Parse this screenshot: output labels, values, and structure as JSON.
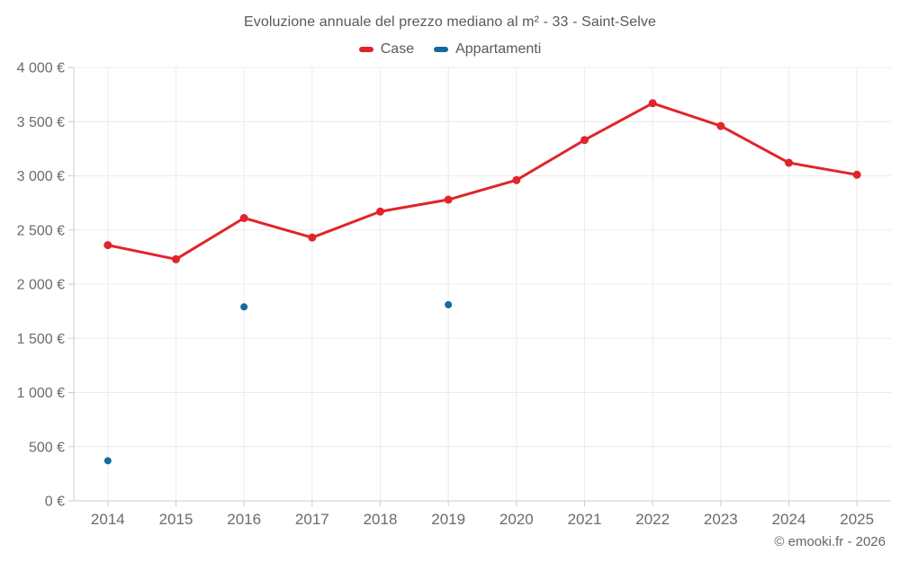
{
  "header": {
    "title": "Evoluzione annuale del prezzo mediano al m² - 33 - Saint-Selve"
  },
  "legend": {
    "items": [
      {
        "label": "Case",
        "color": "#e0252a"
      },
      {
        "label": "Appartamenti",
        "color": "#17699f"
      }
    ]
  },
  "footer": {
    "credit": "© emooki.fr - 2026"
  },
  "chart_data": {
    "type": "line",
    "title": "Evoluzione annuale del prezzo mediano al m² - 33 - Saint-Selve",
    "xlabel": "",
    "ylabel": "",
    "categories": [
      "2014",
      "2015",
      "2016",
      "2017",
      "2018",
      "2019",
      "2020",
      "2021",
      "2022",
      "2023",
      "2024",
      "2025"
    ],
    "series": [
      {
        "name": "Case",
        "mode": "line+markers",
        "color": "#e0252a",
        "values": [
          2360,
          2230,
          2610,
          2430,
          2670,
          2780,
          2960,
          3330,
          3670,
          3460,
          3120,
          3010
        ]
      },
      {
        "name": "Appartamenti",
        "mode": "markers",
        "color": "#17699f",
        "values": [
          370,
          null,
          1790,
          null,
          null,
          1810,
          null,
          null,
          null,
          null,
          null,
          null
        ]
      }
    ],
    "ylim": [
      0,
      4000
    ],
    "ytick_step": 500,
    "ytick_labels": [
      "0 €",
      "500 €",
      "1 000 €",
      "1 500 €",
      "2 000 €",
      "2 500 €",
      "3 000 €",
      "3 500 €",
      "4 000 €"
    ],
    "grid": true,
    "legend_position": "top",
    "colors": {
      "grid": "#ececec",
      "axis": "#cccccc",
      "tick_text": "#6b6b6b"
    }
  }
}
